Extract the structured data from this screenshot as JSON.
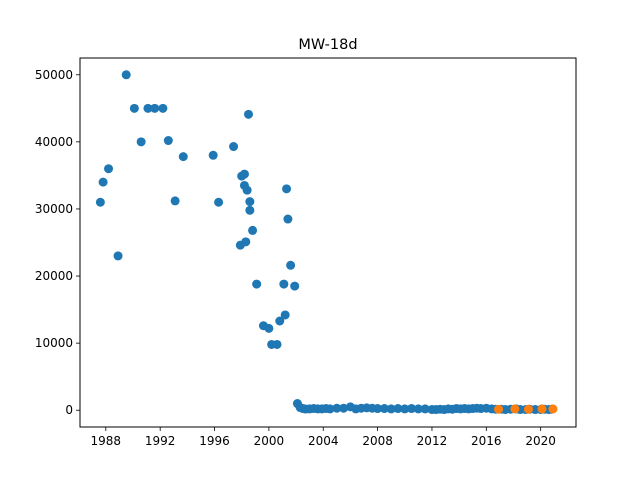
{
  "chart_data": {
    "type": "scatter",
    "title": "MW-18d",
    "xlabel": "",
    "ylabel": "",
    "xlim": [
      1986.1,
      2022.6
    ],
    "ylim": [
      -2500,
      52500
    ],
    "xticks": [
      1988,
      1992,
      1996,
      2000,
      2004,
      2008,
      2012,
      2016,
      2020
    ],
    "yticks": [
      0,
      10000,
      20000,
      30000,
      40000,
      50000
    ],
    "grid": false,
    "legend": "none",
    "series": [
      {
        "color": "#1f77b4",
        "points": [
          [
            1987.6,
            31000
          ],
          [
            1987.8,
            34000
          ],
          [
            1988.2,
            36000
          ],
          [
            1988.9,
            23000
          ],
          [
            1989.5,
            50000
          ],
          [
            1990.1,
            45000
          ],
          [
            1990.6,
            40000
          ],
          [
            1991.1,
            45000
          ],
          [
            1991.6,
            45000
          ],
          [
            1992.2,
            45000
          ],
          [
            1992.6,
            40200
          ],
          [
            1993.1,
            31200
          ],
          [
            1993.7,
            37800
          ],
          [
            1995.9,
            38000
          ],
          [
            1996.3,
            31000
          ],
          [
            1997.4,
            39300
          ],
          [
            1997.9,
            24600
          ],
          [
            1998.0,
            34900
          ],
          [
            1998.2,
            35200
          ],
          [
            1998.2,
            33500
          ],
          [
            1998.3,
            25100
          ],
          [
            1998.4,
            32800
          ],
          [
            1998.5,
            44100
          ],
          [
            1998.6,
            31100
          ],
          [
            1998.6,
            29800
          ],
          [
            1998.8,
            26800
          ],
          [
            1999.1,
            18800
          ],
          [
            1999.6,
            12600
          ],
          [
            2000.0,
            12200
          ],
          [
            2000.2,
            9800
          ],
          [
            2000.6,
            9800
          ],
          [
            2000.8,
            13300
          ],
          [
            2001.1,
            18800
          ],
          [
            2001.2,
            14200
          ],
          [
            2001.3,
            33000
          ],
          [
            2001.4,
            28500
          ],
          [
            2001.6,
            21600
          ],
          [
            2001.9,
            18500
          ],
          [
            2002.1,
            1000
          ],
          [
            2002.3,
            400
          ],
          [
            2002.5,
            250
          ],
          [
            2002.7,
            180
          ],
          [
            2003.0,
            200
          ],
          [
            2003.3,
            250
          ],
          [
            2003.6,
            200
          ],
          [
            2003.9,
            200
          ],
          [
            2004.2,
            250
          ],
          [
            2004.5,
            200
          ],
          [
            2005.0,
            300
          ],
          [
            2005.5,
            300
          ],
          [
            2006.0,
            500
          ],
          [
            2006.4,
            200
          ],
          [
            2006.8,
            300
          ],
          [
            2007.2,
            350
          ],
          [
            2007.6,
            300
          ],
          [
            2008.0,
            250
          ],
          [
            2008.5,
            250
          ],
          [
            2009.0,
            200
          ],
          [
            2009.5,
            250
          ],
          [
            2010.0,
            200
          ],
          [
            2010.5,
            250
          ],
          [
            2011.0,
            200
          ],
          [
            2011.5,
            200
          ],
          [
            2012.0,
            100
          ],
          [
            2012.3,
            100
          ],
          [
            2012.6,
            150
          ],
          [
            2012.9,
            100
          ],
          [
            2013.2,
            200
          ],
          [
            2013.5,
            150
          ],
          [
            2013.8,
            250
          ],
          [
            2014.1,
            200
          ],
          [
            2014.4,
            250
          ],
          [
            2014.7,
            200
          ],
          [
            2015.0,
            250
          ],
          [
            2015.3,
            300
          ],
          [
            2015.6,
            250
          ],
          [
            2016.0,
            300
          ],
          [
            2016.4,
            200
          ],
          [
            2016.7,
            150
          ],
          [
            2017.1,
            150
          ],
          [
            2017.4,
            100
          ],
          [
            2017.8,
            150
          ],
          [
            2018.2,
            200
          ],
          [
            2018.5,
            100
          ],
          [
            2018.9,
            100
          ],
          [
            2019.2,
            150
          ],
          [
            2019.6,
            100
          ],
          [
            2020.0,
            100
          ],
          [
            2020.3,
            150
          ],
          [
            2020.6,
            100
          ],
          [
            2020.8,
            150
          ]
        ]
      },
      {
        "color": "#ff7f0e",
        "points": [
          [
            2016.9,
            150
          ],
          [
            2018.1,
            200
          ],
          [
            2019.1,
            150
          ],
          [
            2020.1,
            200
          ],
          [
            2020.9,
            200
          ]
        ]
      }
    ]
  }
}
